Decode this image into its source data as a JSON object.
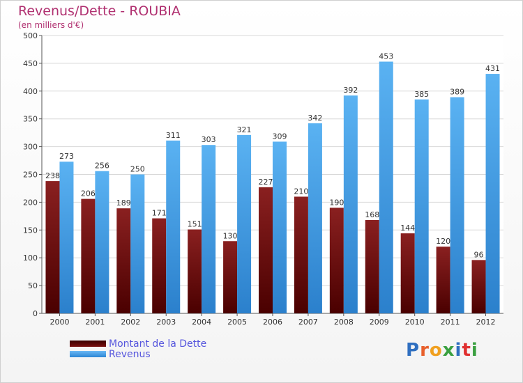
{
  "chart_data": {
    "type": "bar",
    "title": "Revenus/Dette - ROUBIA",
    "subtitle": "(en milliers d'€)",
    "categories": [
      "2000",
      "2001",
      "2002",
      "2003",
      "2004",
      "2005",
      "2006",
      "2007",
      "2008",
      "2009",
      "2010",
      "2011",
      "2012"
    ],
    "series": [
      {
        "name": "Montant de la Dette",
        "color": "#7a1010",
        "values": [
          238,
          206,
          189,
          171,
          151,
          130,
          227,
          210,
          190,
          168,
          144,
          120,
          96
        ]
      },
      {
        "name": "Revenus",
        "color": "#3f9ee8",
        "values": [
          273,
          256,
          250,
          311,
          303,
          321,
          309,
          342,
          392,
          453,
          385,
          389,
          431
        ]
      }
    ],
    "ylim": [
      0,
      500
    ],
    "yticks": [
      0,
      50,
      100,
      150,
      200,
      250,
      300,
      350,
      400,
      450,
      500
    ],
    "grid": true,
    "legend": "bottom-left"
  },
  "logo": {
    "text": "Proxiti",
    "colors": [
      "#2f6fc0",
      "#e8602c",
      "#f0a020",
      "#3aa040",
      "#2f6fc0",
      "#e03030",
      "#3aa040"
    ]
  }
}
